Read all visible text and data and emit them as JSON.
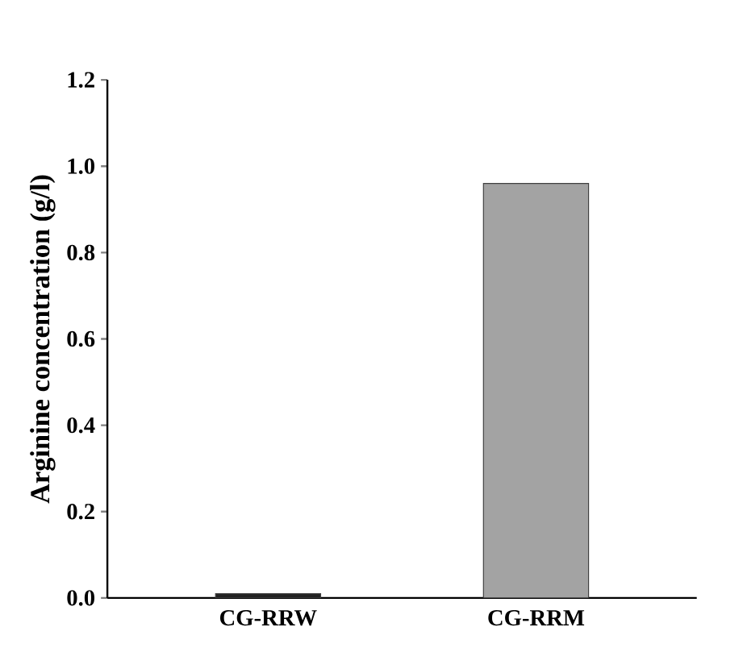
{
  "chart_data": {
    "type": "bar",
    "ylabel": "Arginine concentration (g/l)",
    "categories": [
      "CG-RRW",
      "CG-RRM"
    ],
    "values": [
      0.01,
      0.96
    ],
    "colors": [
      "#222222",
      "#a3a3a3"
    ],
    "ylim": [
      0,
      1.2
    ],
    "yticks": [
      {
        "value": 0,
        "label": "0.0"
      },
      {
        "value": 0.2,
        "label": "0.2"
      },
      {
        "value": 0.4,
        "label": "0.4"
      },
      {
        "value": 0.6,
        "label": "0.6"
      },
      {
        "value": 0.8,
        "label": "0.8"
      },
      {
        "value": 1.0,
        "label": "1.0"
      },
      {
        "value": 1.2,
        "label": "1.2"
      }
    ],
    "grid": false
  }
}
